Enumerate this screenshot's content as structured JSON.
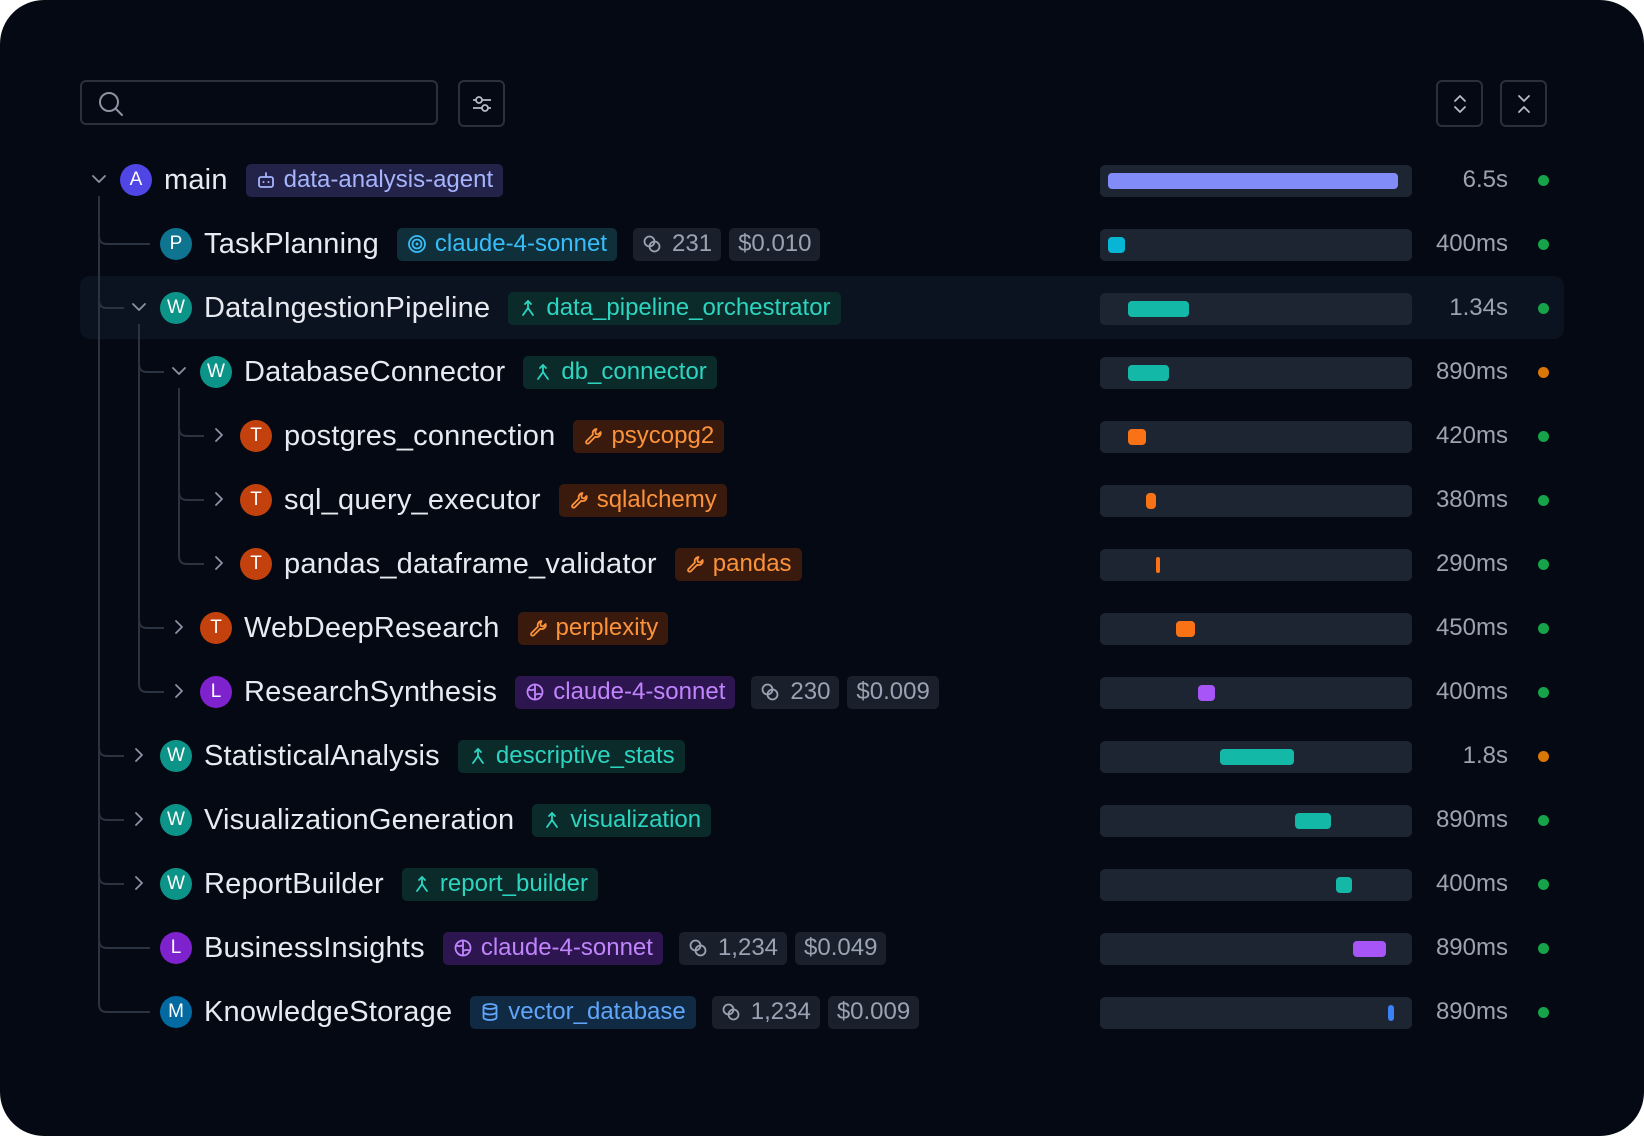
{
  "search": {
    "placeholder": ""
  },
  "colors": {
    "background": "#050913",
    "agent": "#4f46e5",
    "llm": "#7e22ce",
    "workflow": "#0d9488",
    "tool": "#c2410c",
    "memory": "#0369a1",
    "retrieval": "#0e7490",
    "status_ok": "#16a34a",
    "status_warn": "#d97706"
  },
  "toolbar": {
    "search_icon": "search-icon",
    "filter_icon": "sliders-icon",
    "expand_icon": "expand-all-icon",
    "collapse_icon": "collapse-all-icon"
  },
  "timeline": {
    "total_seconds": 6.5
  },
  "rows": [
    {
      "name": "main",
      "avatar": "A",
      "kind": "agent",
      "tag": {
        "label": "data-analysis-agent",
        "icon": "bot-icon"
      },
      "tokens": "",
      "cost": "",
      "duration": "6.5s",
      "status": "ok",
      "expanded": true,
      "bar_start": 0.0,
      "bar_fraction": 1.0
    },
    {
      "name": "TaskPlanning",
      "avatar": "P",
      "kind": "retrieval",
      "tag": {
        "label": "claude-4-sonnet",
        "icon": "target-icon"
      },
      "tokens": "231",
      "cost": "$0.010",
      "duration": "400ms",
      "status": "ok",
      "expanded": null,
      "bar_start": 0.0,
      "bar_fraction": 0.06
    },
    {
      "name": "DataIngestionPipeline",
      "avatar": "W",
      "kind": "workflow",
      "tag": {
        "label": "data_pipeline_orchestrator",
        "icon": "workflow-icon"
      },
      "tokens": "",
      "cost": "",
      "duration": "1.34s",
      "status": "ok",
      "expanded": true,
      "bar_start": 0.07,
      "bar_fraction": 0.21
    },
    {
      "name": "DatabaseConnector",
      "avatar": "W",
      "kind": "workflow",
      "tag": {
        "label": "db_connector",
        "icon": "workflow-icon"
      },
      "tokens": "",
      "cost": "",
      "duration": "890ms",
      "status": "warn",
      "expanded": true,
      "bar_start": 0.07,
      "bar_fraction": 0.14
    },
    {
      "name": "postgres_connection",
      "avatar": "T",
      "kind": "tool",
      "tag": {
        "label": "psycopg2",
        "icon": "wrench-icon"
      },
      "tokens": "",
      "cost": "",
      "duration": "420ms",
      "status": "ok",
      "expanded": false,
      "bar_start": 0.07,
      "bar_fraction": 0.06
    },
    {
      "name": "sql_query_executor",
      "avatar": "T",
      "kind": "tool",
      "tag": {
        "label": "sqlalchemy",
        "icon": "wrench-icon"
      },
      "tokens": "",
      "cost": "",
      "duration": "380ms",
      "status": "ok",
      "expanded": false,
      "bar_start": 0.13,
      "bar_fraction": 0.035
    },
    {
      "name": "pandas_dataframe_validator",
      "avatar": "T",
      "kind": "tool",
      "tag": {
        "label": "pandas",
        "icon": "wrench-icon"
      },
      "tokens": "",
      "cost": "",
      "duration": "290ms",
      "status": "ok",
      "expanded": false,
      "bar_start": 0.165,
      "bar_fraction": 0.012
    },
    {
      "name": "WebDeepResearch",
      "avatar": "T",
      "kind": "tool",
      "tag": {
        "label": "perplexity",
        "icon": "wrench-icon"
      },
      "tokens": "",
      "cost": "",
      "duration": "450ms",
      "status": "ok",
      "expanded": false,
      "bar_start": 0.235,
      "bar_fraction": 0.065
    },
    {
      "name": "ResearchSynthesis",
      "avatar": "L",
      "kind": "llm",
      "tag": {
        "label": "claude-4-sonnet",
        "icon": "brain-icon"
      },
      "tokens": "230",
      "cost": "$0.009",
      "duration": "400ms",
      "status": "ok",
      "expanded": false,
      "bar_start": 0.31,
      "bar_fraction": 0.06
    },
    {
      "name": "StatisticalAnalysis",
      "avatar": "W",
      "kind": "workflow",
      "tag": {
        "label": "descriptive_stats",
        "icon": "workflow-icon"
      },
      "tokens": "",
      "cost": "",
      "duration": "1.8s",
      "status": "warn",
      "expanded": false,
      "bar_start": 0.385,
      "bar_fraction": 0.255
    },
    {
      "name": "VisualizationGeneration",
      "avatar": "W",
      "kind": "workflow",
      "tag": {
        "label": "visualization",
        "icon": "workflow-icon"
      },
      "tokens": "",
      "cost": "",
      "duration": "890ms",
      "status": "ok",
      "expanded": false,
      "bar_start": 0.645,
      "bar_fraction": 0.125
    },
    {
      "name": "ReportBuilder",
      "avatar": "W",
      "kind": "workflow",
      "tag": {
        "label": "report_builder",
        "icon": "workflow-icon"
      },
      "tokens": "",
      "cost": "",
      "duration": "400ms",
      "status": "ok",
      "expanded": false,
      "bar_start": 0.785,
      "bar_fraction": 0.055
    },
    {
      "name": "BusinessInsights",
      "avatar": "L",
      "kind": "llm",
      "tag": {
        "label": "claude-4-sonnet",
        "icon": "brain-icon"
      },
      "tokens": "1,234",
      "cost": "$0.049",
      "duration": "890ms",
      "status": "ok",
      "expanded": null,
      "bar_start": 0.845,
      "bar_fraction": 0.115
    },
    {
      "name": "KnowledgeStorage",
      "avatar": "M",
      "kind": "memory",
      "tag": {
        "label": "vector_database",
        "icon": "database-icon"
      },
      "tokens": "1,234",
      "cost": "$0.009",
      "duration": "890ms",
      "status": "ok",
      "expanded": null,
      "bar_start": 0.965,
      "bar_fraction": 0.02
    }
  ]
}
